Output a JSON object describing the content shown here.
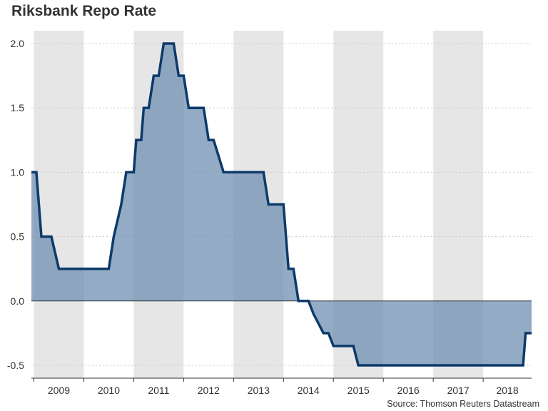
{
  "title": "Riksbank Repo Rate",
  "source": "Source: Thomson Reuters Datastream",
  "chart_data": {
    "type": "area",
    "title": "Riksbank Repo Rate",
    "xlabel": "",
    "ylabel": "",
    "xlim": [
      2008.95,
      2018.97
    ],
    "ylim": [
      -0.6,
      2.1
    ],
    "yticks": [
      -0.5,
      0.0,
      0.5,
      1.0,
      1.5,
      2.0
    ],
    "ytick_labels": [
      "-0.5",
      "0.0",
      "0.5",
      "1.0",
      "1.5",
      "2.0"
    ],
    "xticks": [
      "2009",
      "2010",
      "2011",
      "2012",
      "2013",
      "2014",
      "2015",
      "2016",
      "2017",
      "2018"
    ],
    "grid": "horizontal dotted",
    "year_shading": "alternating grey bands on odd years",
    "colors": {
      "line": "#0d3a6a",
      "fill": "#6f8fb0",
      "band": "#e6e6e6"
    },
    "series": [
      {
        "step": true,
        "x": [
          2008.95,
          2009.05,
          2009.15,
          2009.25,
          2009.35,
          2009.5,
          2009.6,
          2009.75,
          2009.85,
          2010.0,
          2010.2,
          2010.35,
          2010.45,
          2010.5,
          2010.6,
          2010.75,
          2010.85,
          2010.95,
          2011.0,
          2011.05,
          2011.15,
          2011.2,
          2011.3,
          2011.4,
          2011.5,
          2011.6,
          2011.7,
          2011.8,
          2011.9,
          2012.0,
          2012.1,
          2012.2,
          2012.3,
          2012.4,
          2012.5,
          2012.6,
          2012.8,
          2012.9,
          2013.0,
          2013.1,
          2013.2,
          2013.3,
          2013.4,
          2013.5,
          2013.6,
          2013.7,
          2013.8,
          2013.9,
          2014.0,
          2014.1,
          2014.2,
          2014.3,
          2014.4,
          2014.5,
          2014.6,
          2014.8,
          2014.9,
          2015.0,
          2015.1,
          2015.2,
          2015.3,
          2015.4,
          2015.5,
          2015.6,
          2015.7,
          2015.8,
          2015.9,
          2016.0,
          2016.2,
          2016.4,
          2016.6,
          2016.8,
          2017.0,
          2017.2,
          2017.4,
          2017.6,
          2017.8,
          2018.0,
          2018.2,
          2018.4,
          2018.6,
          2018.8,
          2018.85,
          2018.97
        ],
        "values": [
          1.0,
          1.0,
          0.5,
          0.5,
          0.5,
          0.25,
          0.25,
          0.25,
          0.25,
          0.25,
          0.25,
          0.25,
          0.25,
          0.25,
          0.5,
          0.75,
          1.0,
          1.0,
          1.0,
          1.25,
          1.25,
          1.5,
          1.5,
          1.75,
          1.75,
          2.0,
          2.0,
          2.0,
          1.75,
          1.75,
          1.5,
          1.5,
          1.5,
          1.5,
          1.25,
          1.25,
          1.0,
          1.0,
          1.0,
          1.0,
          1.0,
          1.0,
          1.0,
          1.0,
          1.0,
          0.75,
          0.75,
          0.75,
          0.75,
          0.25,
          0.25,
          0.0,
          0.0,
          0.0,
          -0.1,
          -0.25,
          -0.25,
          -0.35,
          -0.35,
          -0.35,
          -0.35,
          -0.35,
          -0.5,
          -0.5,
          -0.5,
          -0.5,
          -0.5,
          -0.5,
          -0.5,
          -0.5,
          -0.5,
          -0.5,
          -0.5,
          -0.5,
          -0.5,
          -0.5,
          -0.5,
          -0.5,
          -0.5,
          -0.5,
          -0.5,
          -0.5,
          -0.25,
          -0.25
        ]
      }
    ]
  }
}
